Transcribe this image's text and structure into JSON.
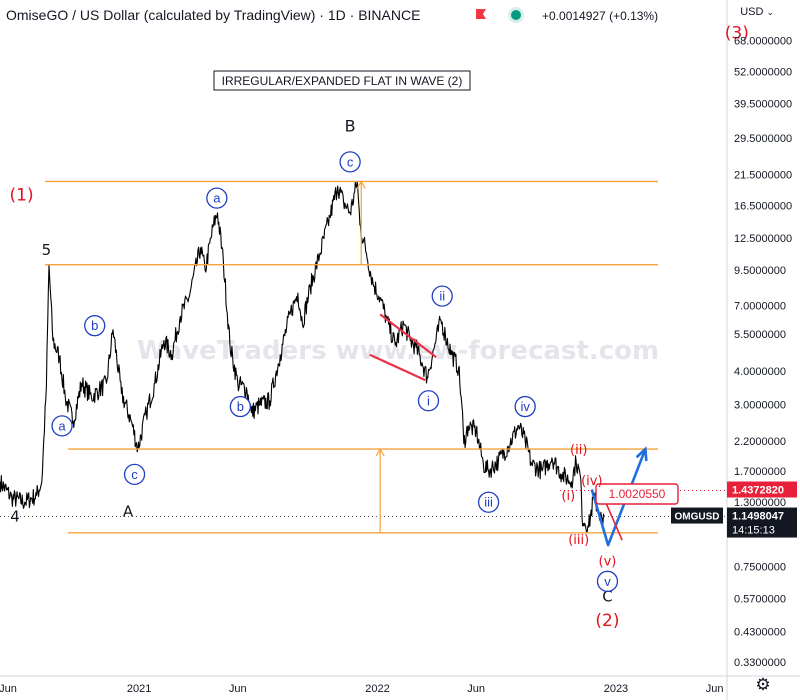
{
  "header": {
    "title": "OmiseGO / US Dollar (calculated by TradingView) · 1D · BINANCE",
    "change": "+0.0014927 (+0.13%)",
    "currency": "USD"
  },
  "colors": {
    "price": "#000000",
    "fib": "#f7a23b",
    "wave_red": "#e0121b",
    "wave_blue": "#1f3fc4",
    "arrow_blue": "#1f6fe0",
    "trend_red": "#e8334a",
    "label_bg": "#e8203a",
    "tag_dark": "#131722"
  },
  "chart_data": {
    "type": "line",
    "title": "IRREGULAR/EXPANDED FLAT IN WAVE (2)",
    "watermark": "WaveTraders www.ew-forecast.com",
    "y_scale": "log",
    "ylim": [
      0.2933,
      79.57
    ],
    "xlim": [
      "2020-06-02",
      "2023-06-20"
    ],
    "x_ticks": [
      {
        "date": "2020-06-01",
        "label": "Jun"
      },
      {
        "date": "2021-01-01",
        "label": "2021"
      },
      {
        "date": "2021-06-01",
        "label": "Jun"
      },
      {
        "date": "2022-01-01",
        "label": "2022"
      },
      {
        "date": "2022-06-01",
        "label": "Jun"
      },
      {
        "date": "2023-01-01",
        "label": "2023"
      },
      {
        "date": "2023-06-01",
        "label": "Jun"
      }
    ],
    "y_ticks": [
      {
        "value": 68.0,
        "label": "68.0000000"
      },
      {
        "value": 52.0,
        "label": "52.0000000"
      },
      {
        "value": 39.5,
        "label": "39.5000000"
      },
      {
        "value": 29.5,
        "label": "29.5000000"
      },
      {
        "value": 21.5,
        "label": "21.5000000"
      },
      {
        "value": 16.5,
        "label": "16.5000000"
      },
      {
        "value": 12.5,
        "label": "12.5000000"
      },
      {
        "value": 9.5,
        "label": "9.5000000"
      },
      {
        "value": 7.0,
        "label": "7.0000000"
      },
      {
        "value": 5.5,
        "label": "5.5000000"
      },
      {
        "value": 4.0,
        "label": "4.0000000"
      },
      {
        "value": 3.0,
        "label": "3.0000000"
      },
      {
        "value": 2.2,
        "label": "2.2000000"
      },
      {
        "value": 1.7,
        "label": "1.7000000"
      },
      {
        "value": 1.3,
        "label": "1.3000000"
      },
      {
        "value": 0.75,
        "label": "0.7500000"
      },
      {
        "value": 0.57,
        "label": "0.5700000"
      },
      {
        "value": 0.43,
        "label": "0.4300000"
      },
      {
        "value": 0.33,
        "label": "0.3300000"
      }
    ],
    "series": [
      {
        "anchors": [
          [
            "2020-06-02",
            1.55
          ],
          [
            "2020-06-20",
            1.35
          ],
          [
            "2020-07-10",
            1.3
          ],
          [
            "2020-07-28",
            1.38
          ],
          [
            "2020-08-05",
            1.55
          ],
          [
            "2020-08-12",
            3.5
          ],
          [
            "2020-08-16",
            9.95
          ],
          [
            "2020-08-22",
            5.2
          ],
          [
            "2020-09-01",
            4.5
          ],
          [
            "2020-09-10",
            3.2
          ],
          [
            "2020-09-22",
            2.6
          ],
          [
            "2020-10-05",
            3.6
          ],
          [
            "2020-10-20",
            3.2
          ],
          [
            "2020-11-01",
            3.4
          ],
          [
            "2020-11-12",
            3.6
          ],
          [
            "2020-11-22",
            5.7
          ],
          [
            "2020-12-05",
            3.3
          ],
          [
            "2020-12-20",
            2.6
          ],
          [
            "2020-12-30",
            2.05
          ],
          [
            "2021-01-12",
            2.8
          ],
          [
            "2021-01-25",
            3.6
          ],
          [
            "2021-02-08",
            5.2
          ],
          [
            "2021-02-20",
            4.6
          ],
          [
            "2021-03-05",
            6.4
          ],
          [
            "2021-03-18",
            7.5
          ],
          [
            "2021-04-05",
            11.5
          ],
          [
            "2021-04-12",
            9.5
          ],
          [
            "2021-04-25",
            14.0
          ],
          [
            "2021-05-01",
            15.5
          ],
          [
            "2021-05-10",
            10.2
          ],
          [
            "2021-05-20",
            5.0
          ],
          [
            "2021-06-01",
            3.6
          ],
          [
            "2021-06-15",
            3.4
          ],
          [
            "2021-06-22",
            2.8
          ],
          [
            "2021-07-05",
            3.0
          ],
          [
            "2021-07-20",
            3.1
          ],
          [
            "2021-08-05",
            4.6
          ],
          [
            "2021-08-20",
            6.5
          ],
          [
            "2021-09-01",
            7.8
          ],
          [
            "2021-09-08",
            6.0
          ],
          [
            "2021-09-20",
            8.2
          ],
          [
            "2021-10-05",
            11.0
          ],
          [
            "2021-10-20",
            15.0
          ],
          [
            "2021-11-01",
            19.5
          ],
          [
            "2021-11-10",
            17.0
          ],
          [
            "2021-11-20",
            15.5
          ],
          [
            "2021-12-01",
            20.3
          ],
          [
            "2021-12-05",
            14.0
          ],
          [
            "2021-12-15",
            11.0
          ],
          [
            "2021-12-25",
            8.5
          ],
          [
            "2022-01-05",
            7.5
          ],
          [
            "2022-01-15",
            6.2
          ],
          [
            "2022-01-28",
            5.0
          ],
          [
            "2022-02-10",
            6.0
          ],
          [
            "2022-02-20",
            5.2
          ],
          [
            "2022-03-01",
            4.9
          ],
          [
            "2022-03-10",
            4.3
          ],
          [
            "2022-03-18",
            3.8
          ],
          [
            "2022-03-28",
            4.8
          ],
          [
            "2022-04-08",
            6.2
          ],
          [
            "2022-04-15",
            5.4
          ],
          [
            "2022-04-25",
            4.6
          ],
          [
            "2022-05-05",
            4.1
          ],
          [
            "2022-05-10",
            3.0
          ],
          [
            "2022-05-13",
            2.15
          ],
          [
            "2022-05-20",
            2.5
          ],
          [
            "2022-06-01",
            2.4
          ],
          [
            "2022-06-12",
            1.8
          ],
          [
            "2022-06-20",
            1.7
          ],
          [
            "2022-07-05",
            1.85
          ],
          [
            "2022-07-20",
            2.1
          ],
          [
            "2022-08-05",
            2.5
          ],
          [
            "2022-08-15",
            2.2
          ],
          [
            "2022-08-25",
            1.8
          ],
          [
            "2022-09-10",
            1.7
          ],
          [
            "2022-09-25",
            1.9
          ],
          [
            "2022-10-10",
            1.65
          ],
          [
            "2022-10-25",
            1.55
          ],
          [
            "2022-11-01",
            1.85
          ],
          [
            "2022-11-08",
            1.6
          ],
          [
            "2022-11-10",
            1.15
          ],
          [
            "2022-11-20",
            1.05
          ],
          [
            "2022-11-28",
            1.35
          ],
          [
            "2022-12-05",
            1.22
          ],
          [
            "2022-12-12",
            1.08
          ],
          [
            "2022-12-14",
            1.15
          ]
        ]
      }
    ],
    "price_levels": [
      {
        "value": 20.3,
        "style": "solid",
        "note": "fib upper"
      },
      {
        "value": 9.95,
        "style": "solid",
        "note": "fib wave 5 high"
      },
      {
        "value": 2.05,
        "style": "solid",
        "note": "fib wave 4 low"
      },
      {
        "value": 1.0,
        "style": "solid",
        "note": "fib lower"
      },
      {
        "value": 1.437282,
        "style": "dotted",
        "note": "last high"
      },
      {
        "value": 1.15,
        "style": "dotted",
        "note": "current"
      }
    ],
    "measure_arrows": [
      {
        "x": "2021-12-07",
        "from": 9.95,
        "to": 20.3
      },
      {
        "x": "2022-01-05",
        "from": 1.0,
        "to": 2.05
      }
    ],
    "trend_lines": [
      {
        "from": [
          "2022-01-05",
          6.5
        ],
        "to": [
          "2022-04-01",
          4.5
        ]
      },
      {
        "from": [
          "2021-12-20",
          4.6
        ],
        "to": [
          "2022-03-15",
          3.7
        ]
      }
    ],
    "forecast_arrow": {
      "points": [
        [
          "2022-11-25",
          1.45
        ],
        [
          "2022-12-20",
          0.9
        ],
        [
          "2023-02-15",
          2.05
        ]
      ]
    },
    "price_labels": [
      {
        "value": 1.437282,
        "text": "1.4372820",
        "bg": "#e8203a"
      },
      {
        "value": 1.1498047,
        "text": "1.1498047",
        "bg": "#131722",
        "sub": "14:15:13",
        "tag": "OMGUSD"
      }
    ],
    "callout": {
      "text": "1.0020550",
      "at": [
        "2022-12-20",
        0.9
      ]
    },
    "wave_labels": [
      {
        "text": "(1)",
        "x": "2020-07-05",
        "y": 18.0,
        "color": "#e0121b",
        "circle": false,
        "size": 17
      },
      {
        "text": "5",
        "x": "2020-08-12",
        "y": 11.3,
        "color": "#131722",
        "circle": false,
        "size": 15
      },
      {
        "text": "4",
        "x": "2020-06-25",
        "y": 1.15,
        "color": "#131722",
        "circle": false,
        "size": 15
      },
      {
        "text": "A",
        "x": "2020-12-15",
        "y": 1.2,
        "color": "#131722",
        "circle": false,
        "size": 15
      },
      {
        "text": "B",
        "x": "2021-11-20",
        "y": 32.5,
        "color": "#131722",
        "circle": false,
        "size": 16
      },
      {
        "text": "C",
        "x": "2022-12-19",
        "y": 0.58,
        "color": "#131722",
        "circle": false,
        "size": 15
      },
      {
        "text": "(2)",
        "x": "2022-12-19",
        "y": 0.47,
        "color": "#e0121b",
        "circle": false,
        "size": 17
      },
      {
        "text": "(3)",
        "x": "2023-07-05",
        "y": 72.0,
        "color": "#e0121b",
        "circle": false,
        "size": 17
      },
      {
        "text": "a",
        "x": "2020-09-05",
        "y": 2.5,
        "color": "#1f3fc4",
        "circle": true
      },
      {
        "text": "b",
        "x": "2020-10-25",
        "y": 5.9,
        "color": "#1f3fc4",
        "circle": true
      },
      {
        "text": "c",
        "x": "2020-12-25",
        "y": 1.65,
        "color": "#1f3fc4",
        "circle": true
      },
      {
        "text": "a",
        "x": "2021-04-30",
        "y": 17.6,
        "color": "#1f3fc4",
        "circle": true
      },
      {
        "text": "b",
        "x": "2021-06-05",
        "y": 2.95,
        "color": "#1f3fc4",
        "circle": true
      },
      {
        "text": "c",
        "x": "2021-11-20",
        "y": 24.0,
        "color": "#1f3fc4",
        "circle": true
      },
      {
        "text": "i",
        "x": "2022-03-20",
        "y": 3.1,
        "color": "#1f3fc4",
        "circle": true
      },
      {
        "text": "ii",
        "x": "2022-04-10",
        "y": 7.6,
        "color": "#1f3fc4",
        "circle": true
      },
      {
        "text": "iii",
        "x": "2022-06-20",
        "y": 1.3,
        "color": "#1f3fc4",
        "circle": true
      },
      {
        "text": "iv",
        "x": "2022-08-15",
        "y": 2.95,
        "color": "#1f3fc4",
        "circle": true
      },
      {
        "text": "v",
        "x": "2022-12-19",
        "y": 0.66,
        "color": "#1f3fc4",
        "circle": true
      },
      {
        "text": "(i)",
        "x": "2022-10-20",
        "y": 1.38,
        "color": "#e0121b",
        "circle": false,
        "size": 13
      },
      {
        "text": "(ii)",
        "x": "2022-11-05",
        "y": 2.05,
        "color": "#e0121b",
        "circle": false,
        "size": 13
      },
      {
        "text": "(iii)",
        "x": "2022-11-05",
        "y": 0.95,
        "color": "#e0121b",
        "circle": false,
        "size": 13
      },
      {
        "text": "(iv)",
        "x": "2022-11-25",
        "y": 1.57,
        "color": "#e0121b",
        "circle": false,
        "size": 13
      },
      {
        "text": "(v)",
        "x": "2022-12-19",
        "y": 0.79,
        "color": "#e0121b",
        "circle": false,
        "size": 13
      }
    ]
  }
}
